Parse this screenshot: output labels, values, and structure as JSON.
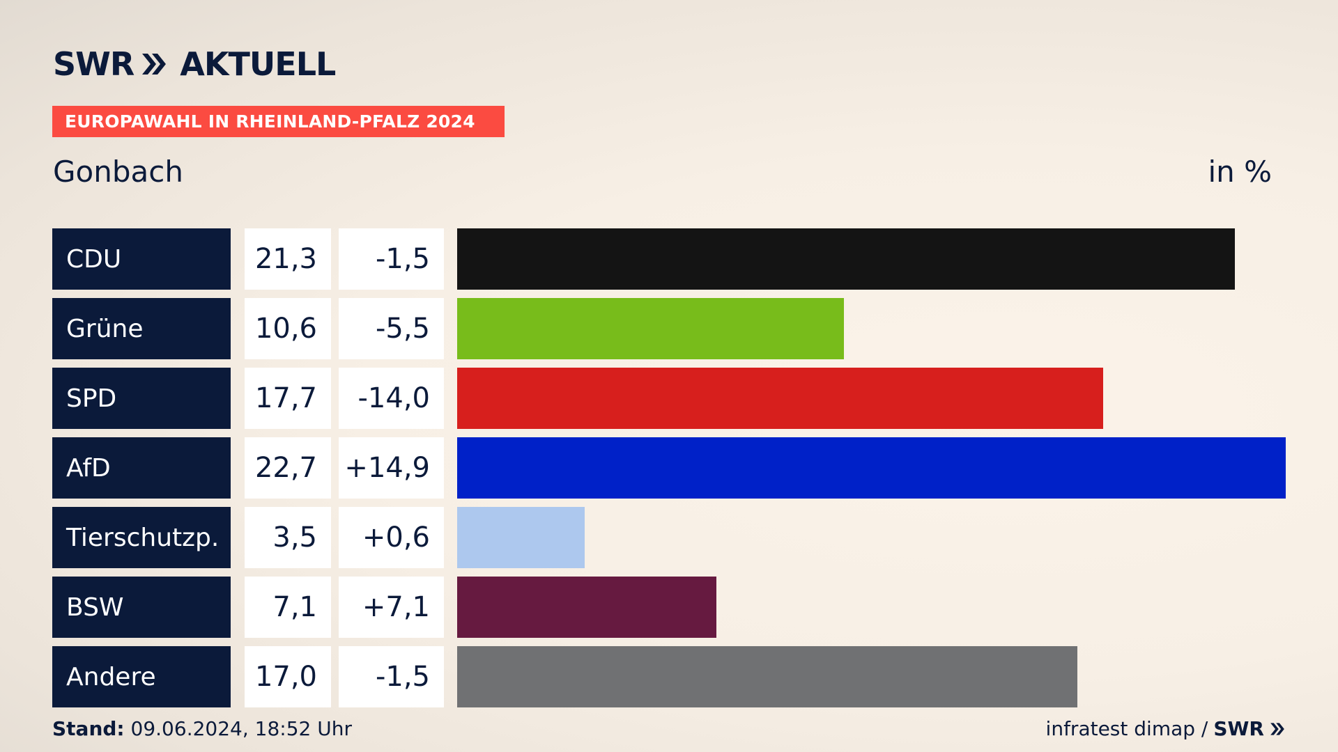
{
  "header": {
    "brand": "SWR",
    "product": "AKTUELL",
    "event_tag": "EUROPAWAHL IN RHEINLAND-PFALZ 2024",
    "region": "Gonbach",
    "unit": "in %"
  },
  "footer": {
    "stand_label": "Stand:",
    "stand_value": "09.06.2024, 18:52 Uhr",
    "source": "infratest dimap /",
    "source_brand": "SWR"
  },
  "icons": {
    "logo_chevrons": "double-chevron-right-icon",
    "footer_chevrons": "double-chevron-right-icon"
  },
  "colors": {
    "accent": "#fb4b41",
    "navy": "#0b1a3a"
  },
  "chart_data": {
    "type": "bar",
    "orientation": "horizontal",
    "unit": "in %",
    "xlim": [
      0,
      22.7
    ],
    "categories": [
      "CDU",
      "Grüne",
      "SPD",
      "AfD",
      "Tierschutzp.",
      "BSW",
      "Andere"
    ],
    "values": [
      21.3,
      10.6,
      17.7,
      22.7,
      3.5,
      7.1,
      17.0
    ],
    "value_labels": [
      "21,3",
      "10,6",
      "17,7",
      "22,7",
      "3,5",
      "7,1",
      "17,0"
    ],
    "changes": [
      -1.5,
      -5.5,
      -14.0,
      14.9,
      0.6,
      7.1,
      -1.5
    ],
    "change_labels": [
      "-1,5",
      "-5,5",
      "-14,0",
      "+14,9",
      "+0,6",
      "+7,1",
      "-1,5"
    ],
    "colors": [
      "#141414",
      "#78bc1b",
      "#d71f1d",
      "#0021c8",
      "#adc8ee",
      "#661a40",
      "#707173"
    ]
  }
}
